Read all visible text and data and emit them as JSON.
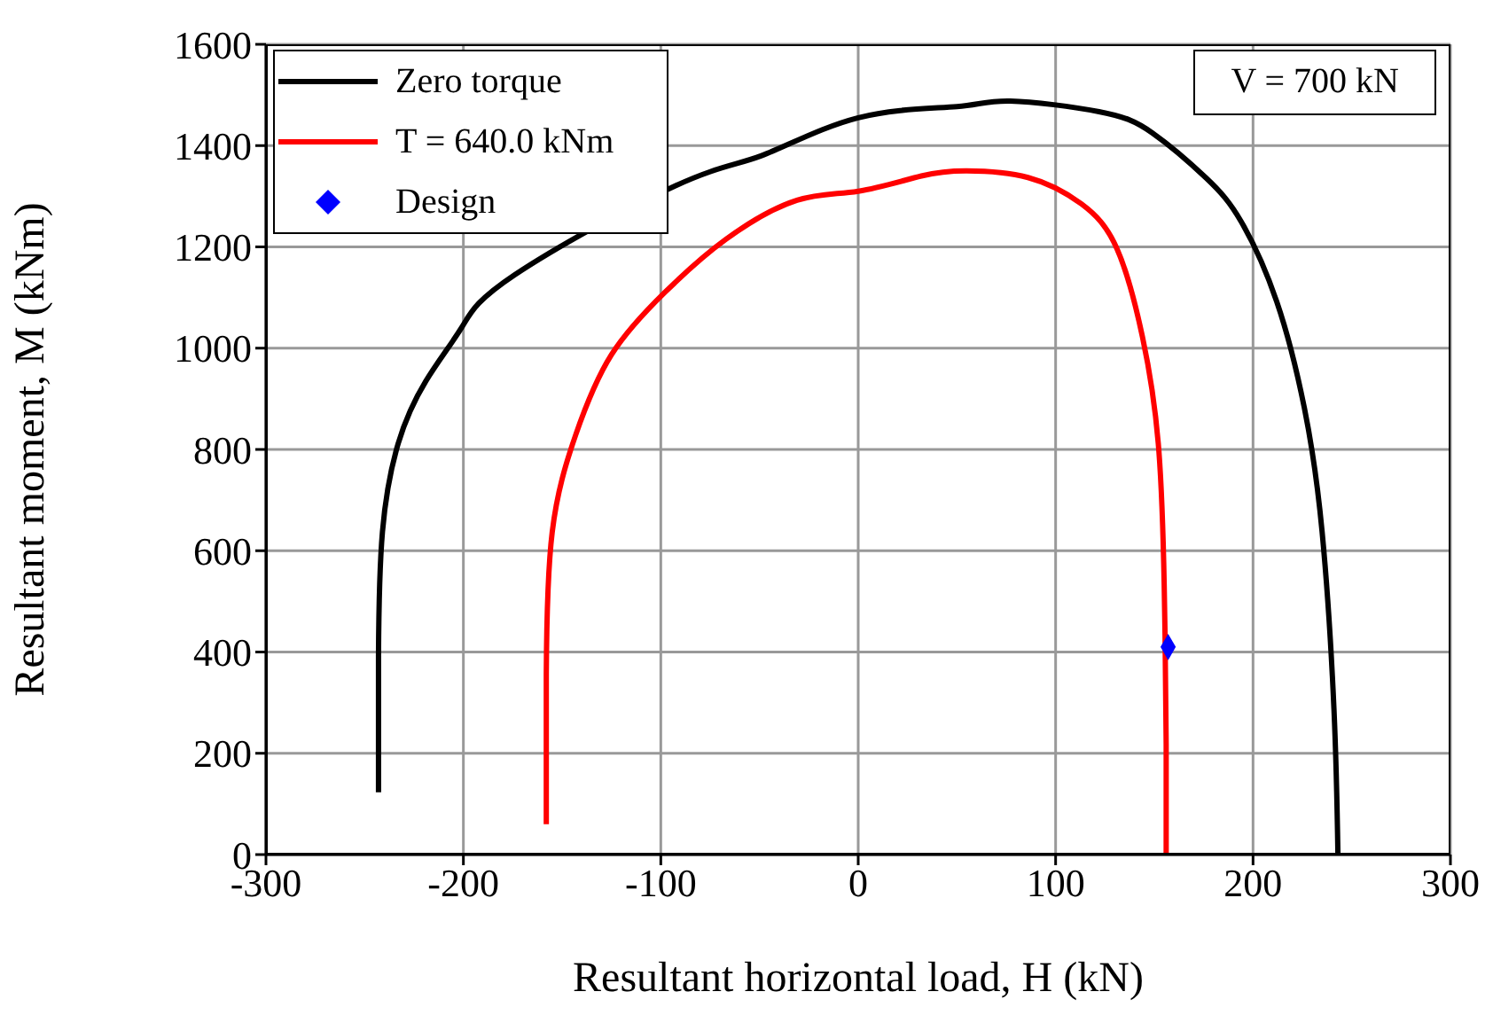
{
  "chart_data": {
    "type": "line",
    "xlabel": "Resultant horizontal load, H (kN)",
    "ylabel": "Resultant moment, M (kNm)",
    "xlim": [
      -300,
      300
    ],
    "xticks": [
      -300,
      -200,
      -100,
      0,
      100,
      200,
      300
    ],
    "ylim": [
      0,
      1600
    ],
    "yticks": [
      0,
      200,
      400,
      600,
      800,
      1000,
      1200,
      1400,
      1600
    ],
    "grid": true,
    "legend": "top left",
    "marker": "none",
    "line_style": "solid",
    "annotations": [
      "V = 700 kN"
    ],
    "series": [
      {
        "name": "Zero torque",
        "color": "#000000",
        "x": [
          -243,
          -243,
          -241,
          -233,
          -219,
          -201,
          -174,
          -138,
          -93,
          -49,
          0,
          50,
          77,
          122,
          149,
          176,
          194,
          212,
          226,
          235,
          241,
          243
        ],
        "values": [
          123,
          392,
          637,
          812,
          935,
          1040,
          1145,
          null,
          1320,
          1380,
          1455,
          1477,
          1488,
          1467,
          1425,
          1337,
          1250,
          1092,
          882,
          637,
          287,
          0
        ]
      },
      {
        "name": "T = 640.0 kNm",
        "color": "#ff0000",
        "x": [
          -158,
          -158,
          -155,
          -143,
          -125,
          -98,
          -67,
          -31,
          0,
          32,
          55,
          86,
          113,
          131,
          144,
          152,
          155,
          156,
          156
        ],
        "values": [
          60,
          357,
          637,
          830,
          987,
          1110,
          1215,
          1292,
          1310,
          1340,
          1350,
          1337,
          1285,
          1197,
          1022,
          812,
          532,
          217,
          0
        ]
      },
      {
        "name": "Design",
        "type": "scatter",
        "marker": "diamond",
        "color": "#0000ff",
        "x": [
          157
        ],
        "values": [
          410
        ]
      }
    ]
  }
}
